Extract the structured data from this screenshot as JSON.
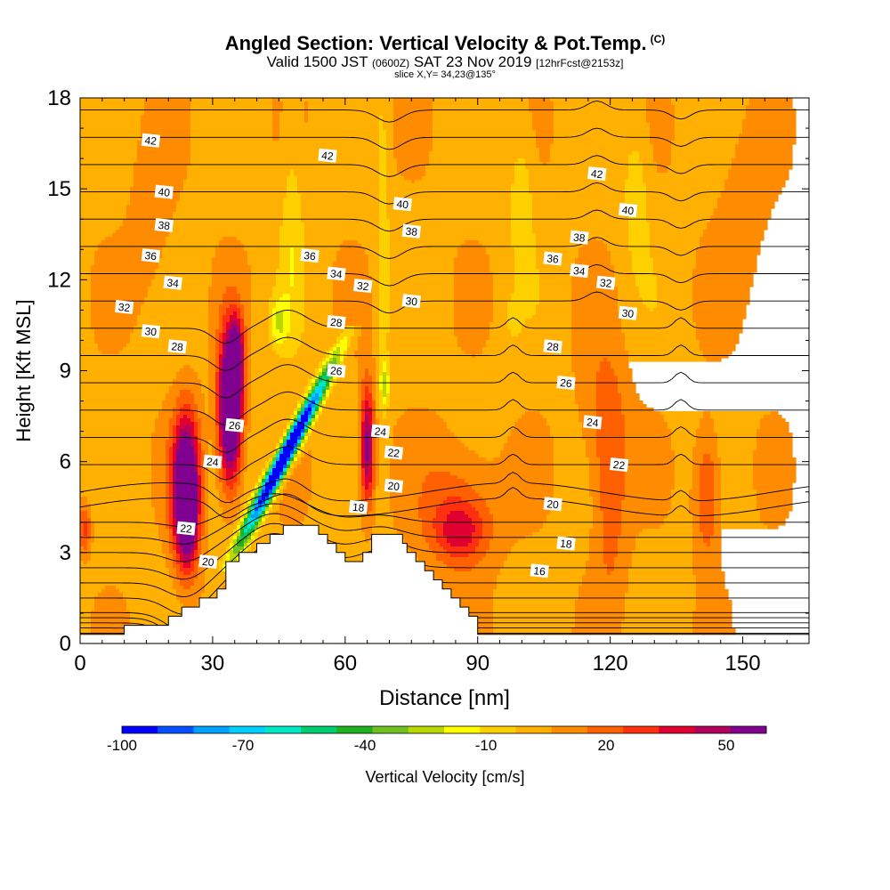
{
  "header": {
    "title": "Angled Section: Vertical Velocity & Pot.Temp.",
    "title_units": "(C)",
    "valid_prefix": "Valid 1500 JST",
    "valid_utc": "(0600Z)",
    "valid_date": "SAT 23 Nov 2019",
    "forecast": "[12hrFcst@2153z]",
    "slice": "slice X,Y= 34,23@135°"
  },
  "chart_data": {
    "type": "heatmap",
    "title": "Angled Section: Vertical Velocity & Pot.Temp. (C)",
    "xlabel": "Distance [nm]",
    "ylabel": "Height [Kft MSL]",
    "xlim": [
      0,
      165
    ],
    "ylim": [
      0,
      18
    ],
    "x_ticks": [
      0,
      30,
      60,
      90,
      120,
      150
    ],
    "y_ticks": [
      0,
      3,
      6,
      9,
      12,
      15,
      18
    ],
    "colorbar": {
      "title": "Vertical Velocity [cm/s]",
      "tick_labels": [
        -100,
        -70,
        -40,
        -10,
        20,
        50
      ],
      "colors": [
        "#0000ff",
        "#0050ff",
        "#00a0ff",
        "#00d0ff",
        "#00e8c8",
        "#00cc70",
        "#20b020",
        "#70c020",
        "#b8d800",
        "#ffff00",
        "#ffd000",
        "#ffb000",
        "#ff8c00",
        "#ff6000",
        "#ff3010",
        "#e00030",
        "#b00060",
        "#800090"
      ]
    },
    "terrain_profile": [
      [
        0,
        0.3
      ],
      [
        10,
        0.3
      ],
      [
        10,
        0.6
      ],
      [
        20,
        0.6
      ],
      [
        20,
        0.9
      ],
      [
        23,
        0.9
      ],
      [
        23,
        1.2
      ],
      [
        27,
        1.2
      ],
      [
        27,
        1.5
      ],
      [
        31,
        1.5
      ],
      [
        31,
        1.8
      ],
      [
        33,
        1.8
      ],
      [
        33,
        2.7
      ],
      [
        36,
        2.7
      ],
      [
        36,
        3.0
      ],
      [
        40,
        3.0
      ],
      [
        40,
        3.3
      ],
      [
        43,
        3.3
      ],
      [
        43,
        3.6
      ],
      [
        46,
        3.6
      ],
      [
        46,
        3.9
      ],
      [
        54,
        3.9
      ],
      [
        54,
        3.6
      ],
      [
        56,
        3.6
      ],
      [
        56,
        3.3
      ],
      [
        58,
        3.3
      ],
      [
        58,
        3.0
      ],
      [
        60,
        3.0
      ],
      [
        60,
        2.7
      ],
      [
        64,
        2.7
      ],
      [
        64,
        3.0
      ],
      [
        66,
        3.0
      ],
      [
        66,
        3.6
      ],
      [
        73,
        3.6
      ],
      [
        73,
        3.3
      ],
      [
        74,
        3.3
      ],
      [
        74,
        3.0
      ],
      [
        76,
        3.0
      ],
      [
        76,
        2.7
      ],
      [
        78,
        2.7
      ],
      [
        78,
        2.4
      ],
      [
        80,
        2.4
      ],
      [
        80,
        2.1
      ],
      [
        82,
        2.1
      ],
      [
        82,
        1.8
      ],
      [
        84,
        1.8
      ],
      [
        84,
        1.5
      ],
      [
        86,
        1.5
      ],
      [
        86,
        1.2
      ],
      [
        88,
        1.2
      ],
      [
        88,
        0.9
      ],
      [
        90,
        0.9
      ],
      [
        90,
        0.3
      ],
      [
        165,
        0.3
      ]
    ],
    "vertical_velocity_features": [
      {
        "x": 24,
        "y": 5.0,
        "value": 50,
        "label": "updraft"
      },
      {
        "x": 35,
        "y": 8.0,
        "value": 50,
        "label": "updraft"
      },
      {
        "x": 44,
        "y": 6.2,
        "value": -90,
        "label": "downdraft"
      },
      {
        "x": 65,
        "y": 6.5,
        "value": 30,
        "label": "updraft"
      },
      {
        "x": 86,
        "y": 3.7,
        "value": 20,
        "label": "updraft"
      },
      {
        "x": 122,
        "y": 5.0,
        "value": 15,
        "label": "updraft"
      },
      {
        "x": 142,
        "y": 5.0,
        "value": 25,
        "label": "updraft"
      }
    ],
    "contour_labels": [
      {
        "x": 16,
        "y": 16.6,
        "text": "42"
      },
      {
        "x": 56,
        "y": 16.1,
        "text": "42"
      },
      {
        "x": 117,
        "y": 15.5,
        "text": "42"
      },
      {
        "x": 19,
        "y": 14.9,
        "text": "40"
      },
      {
        "x": 73,
        "y": 14.5,
        "text": "40"
      },
      {
        "x": 124,
        "y": 14.3,
        "text": "40"
      },
      {
        "x": 19,
        "y": 13.8,
        "text": "38"
      },
      {
        "x": 75,
        "y": 13.6,
        "text": "38"
      },
      {
        "x": 113,
        "y": 13.4,
        "text": "38"
      },
      {
        "x": 16,
        "y": 12.8,
        "text": "36"
      },
      {
        "x": 52,
        "y": 12.8,
        "text": "36"
      },
      {
        "x": 107,
        "y": 12.7,
        "text": "36"
      },
      {
        "x": 21,
        "y": 11.9,
        "text": "34"
      },
      {
        "x": 58,
        "y": 12.2,
        "text": "34"
      },
      {
        "x": 113,
        "y": 12.3,
        "text": "34"
      },
      {
        "x": 10,
        "y": 11.1,
        "text": "32"
      },
      {
        "x": 64,
        "y": 11.8,
        "text": "32"
      },
      {
        "x": 119,
        "y": 11.9,
        "text": "32"
      },
      {
        "x": 16,
        "y": 10.3,
        "text": "30"
      },
      {
        "x": 75,
        "y": 11.3,
        "text": "30"
      },
      {
        "x": 124,
        "y": 10.9,
        "text": "30"
      },
      {
        "x": 22,
        "y": 9.8,
        "text": "28"
      },
      {
        "x": 58,
        "y": 10.6,
        "text": "28"
      },
      {
        "x": 107,
        "y": 9.8,
        "text": "28"
      },
      {
        "x": 58,
        "y": 9.0,
        "text": "26"
      },
      {
        "x": 110,
        "y": 8.6,
        "text": "26"
      },
      {
        "x": 35,
        "y": 7.2,
        "text": "26"
      },
      {
        "x": 30,
        "y": 6.0,
        "text": "24"
      },
      {
        "x": 68,
        "y": 7.0,
        "text": "24"
      },
      {
        "x": 116,
        "y": 7.3,
        "text": "24"
      },
      {
        "x": 71,
        "y": 6.3,
        "text": "22"
      },
      {
        "x": 122,
        "y": 5.9,
        "text": "22"
      },
      {
        "x": 24,
        "y": 3.8,
        "text": "22"
      },
      {
        "x": 71,
        "y": 5.2,
        "text": "20"
      },
      {
        "x": 107,
        "y": 4.6,
        "text": "20"
      },
      {
        "x": 29,
        "y": 2.7,
        "text": "20"
      },
      {
        "x": 63,
        "y": 4.5,
        "text": "18"
      },
      {
        "x": 110,
        "y": 3.3,
        "text": "18"
      },
      {
        "x": 104,
        "y": 2.4,
        "text": "16"
      }
    ]
  }
}
